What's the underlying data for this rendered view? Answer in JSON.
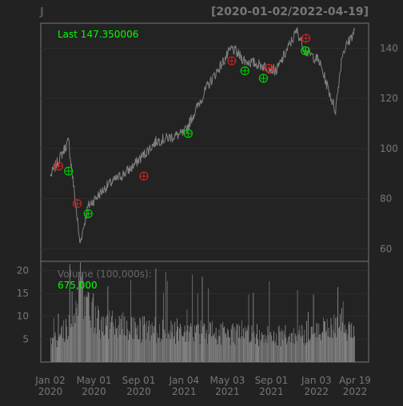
{
  "chart_data": [
    {
      "type": "line",
      "symbol": "J",
      "date_range": "[2020-01-02/2022-04-19]",
      "last_label": "Last 147.350006",
      "x_dates": [
        "2020-01-02",
        "2020-02-21",
        "2020-03-16",
        "2020-03-23",
        "2020-04-15",
        "2020-06-05",
        "2020-08-10",
        "2020-10-20",
        "2021-01-04",
        "2021-03-10",
        "2021-05-15",
        "2021-06-20",
        "2021-08-10",
        "2021-09-15",
        "2021-11-10",
        "2021-12-03",
        "2022-01-10",
        "2022-02-24",
        "2022-03-15",
        "2022-04-19"
      ],
      "y_values": [
        89,
        103,
        72,
        62,
        77,
        85,
        92,
        103,
        106,
        125,
        140,
        135,
        133,
        131,
        147,
        139,
        135,
        115,
        138,
        147.35
      ],
      "y_ticks": [
        60,
        80,
        100,
        120,
        140
      ],
      "ylim": [
        55,
        150
      ],
      "x_ticks": [
        {
          "line1": "Jan 02",
          "line2": "2020"
        },
        {
          "line1": "May 01",
          "line2": "2020"
        },
        {
          "line1": "Sep 01",
          "line2": "2020"
        },
        {
          "line1": "Jan 04",
          "line2": "2021"
        },
        {
          "line1": "May 03",
          "line2": "2021"
        },
        {
          "line1": "Sep 01",
          "line2": "2021"
        },
        {
          "line1": "Jan 03",
          "line2": "2022"
        },
        {
          "line1": "Apr 19",
          "line2": "2022"
        }
      ],
      "x_tick_dates": [
        "2020-01-02",
        "2020-05-01",
        "2020-09-01",
        "2021-01-04",
        "2021-05-03",
        "2021-09-01",
        "2022-01-03",
        "2022-04-19"
      ],
      "buy_signals": [
        {
          "date": "2020-02-21",
          "value": 91
        },
        {
          "date": "2020-04-15",
          "value": 74
        },
        {
          "date": "2021-01-15",
          "value": 106
        },
        {
          "date": "2021-06-20",
          "value": 131
        },
        {
          "date": "2021-08-10",
          "value": 128
        },
        {
          "date": "2021-12-03",
          "value": 139
        }
      ],
      "sell_signals": [
        {
          "date": "2020-01-25",
          "value": 93
        },
        {
          "date": "2020-03-16",
          "value": 78
        },
        {
          "date": "2020-09-15",
          "value": 89
        },
        {
          "date": "2021-05-15",
          "value": 135
        },
        {
          "date": "2021-08-25",
          "value": 132
        },
        {
          "date": "2021-12-05",
          "value": 144
        }
      ],
      "colors": {
        "price_line": "#808080",
        "buy": "#00cc00",
        "sell": "#cc2222",
        "last_label": "#00ff00"
      }
    },
    {
      "type": "bar",
      "title": "Volume (100,000s):",
      "last_volume": "675,000",
      "y_ticks": [
        5,
        10,
        15,
        20
      ],
      "ylim": [
        0,
        22
      ],
      "profile_dates": [
        "2020-01-02",
        "2020-02-25",
        "2020-03-20",
        "2020-05-15",
        "2020-09-01",
        "2021-01-04",
        "2021-06-01",
        "2021-10-01",
        "2022-01-10",
        "2022-03-01",
        "2022-04-19"
      ],
      "profile_values": [
        4.5,
        9,
        16,
        9,
        7.5,
        7,
        6.5,
        6,
        7,
        8,
        6.75
      ],
      "colors": {
        "bars": "#808080",
        "last_label": "#00ff00"
      }
    }
  ]
}
